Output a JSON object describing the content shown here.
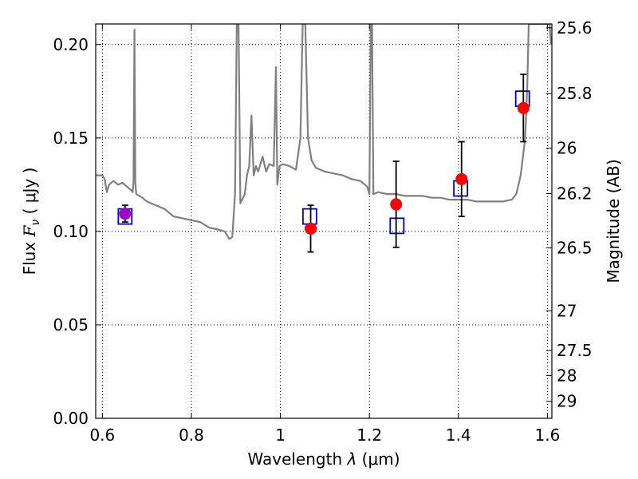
{
  "chart_data": {
    "type": "scatter",
    "xlabel_main": "Wavelength  ",
    "xlabel_lambda": "λ",
    "xlabel_unit": " (μm)",
    "ylabel_prefix": "Flux  ",
    "ylabel_symbol": "F",
    "ylabel_sub": "ν",
    "ylabel_unit": "  ( μJy )",
    "y2label": "Magnitude (AB)",
    "xlim": [
      0.585,
      1.61
    ],
    "ylim": [
      0.0,
      0.211
    ],
    "grid": true,
    "x_ticks": [
      {
        "value": 0.6,
        "label": "0.6"
      },
      {
        "value": 0.8,
        "label": "0.8"
      },
      {
        "value": 1.0,
        "label": "1"
      },
      {
        "value": 1.2,
        "label": "1.2"
      },
      {
        "value": 1.4,
        "label": "1.4"
      },
      {
        "value": 1.6,
        "label": "1.6"
      }
    ],
    "y_ticks": [
      {
        "value": 0.0,
        "label": "0.00"
      },
      {
        "value": 0.05,
        "label": "0.05"
      },
      {
        "value": 0.1,
        "label": "0.10"
      },
      {
        "value": 0.15,
        "label": "0.15"
      },
      {
        "value": 0.2,
        "label": "0.20"
      }
    ],
    "mag_ticks": [
      {
        "mag": 25.6,
        "label": "25.6"
      },
      {
        "mag": 25.8,
        "label": "25.8"
      },
      {
        "mag": 26.0,
        "label": "26"
      },
      {
        "mag": 26.2,
        "label": "26.2"
      },
      {
        "mag": 26.5,
        "label": "26.5"
      },
      {
        "mag": 27.0,
        "label": "27"
      },
      {
        "mag": 27.5,
        "label": "27.5"
      },
      {
        "mag": 28.0,
        "label": "28"
      },
      {
        "mag": 29.0,
        "label": "29"
      }
    ],
    "series": [
      {
        "name": "model spectrum",
        "kind": "line",
        "color": "#808080",
        "points": [
          [
            0.585,
            0.13
          ],
          [
            0.6,
            0.13
          ],
          [
            0.605,
            0.128
          ],
          [
            0.61,
            0.121
          ],
          [
            0.615,
            0.125
          ],
          [
            0.625,
            0.127
          ],
          [
            0.635,
            0.125
          ],
          [
            0.645,
            0.126
          ],
          [
            0.655,
            0.124
          ],
          [
            0.665,
            0.122
          ],
          [
            0.668,
            0.121
          ],
          [
            0.67,
            0.126
          ],
          [
            0.672,
            0.208
          ],
          [
            0.674,
            0.126
          ],
          [
            0.676,
            0.12
          ],
          [
            0.69,
            0.118
          ],
          [
            0.7,
            0.116
          ],
          [
            0.72,
            0.114
          ],
          [
            0.74,
            0.112
          ],
          [
            0.76,
            0.108
          ],
          [
            0.78,
            0.107
          ],
          [
            0.8,
            0.106
          ],
          [
            0.82,
            0.105
          ],
          [
            0.84,
            0.102
          ],
          [
            0.86,
            0.101
          ],
          [
            0.875,
            0.1
          ],
          [
            0.88,
            0.098
          ],
          [
            0.885,
            0.096
          ],
          [
            0.892,
            0.097
          ],
          [
            0.898,
            0.12
          ],
          [
            0.902,
            0.211
          ],
          [
            0.906,
            0.211
          ],
          [
            0.91,
            0.115
          ],
          [
            0.92,
            0.12
          ],
          [
            0.925,
            0.13
          ],
          [
            0.93,
            0.135
          ],
          [
            0.935,
            0.162
          ],
          [
            0.94,
            0.13
          ],
          [
            0.945,
            0.135
          ],
          [
            0.95,
            0.132
          ],
          [
            0.96,
            0.14
          ],
          [
            0.968,
            0.132
          ],
          [
            0.975,
            0.136
          ],
          [
            0.985,
            0.135
          ],
          [
            0.99,
            0.188
          ],
          [
            0.993,
            0.125
          ],
          [
            0.998,
            0.135
          ],
          [
            1.005,
            0.136
          ],
          [
            1.02,
            0.135
          ],
          [
            1.035,
            0.133
          ],
          [
            1.045,
            0.15
          ],
          [
            1.05,
            0.211
          ],
          [
            1.056,
            0.211
          ],
          [
            1.062,
            0.15
          ],
          [
            1.07,
            0.138
          ],
          [
            1.08,
            0.134
          ],
          [
            1.09,
            0.133
          ],
          [
            1.1,
            0.132
          ],
          [
            1.12,
            0.131
          ],
          [
            1.14,
            0.13
          ],
          [
            1.16,
            0.128
          ],
          [
            1.18,
            0.127
          ],
          [
            1.195,
            0.124
          ],
          [
            1.2,
            0.12
          ],
          [
            1.203,
            0.211
          ],
          [
            1.206,
            0.211
          ],
          [
            1.209,
            0.12
          ],
          [
            1.22,
            0.121
          ],
          [
            1.24,
            0.12
          ],
          [
            1.26,
            0.12
          ],
          [
            1.28,
            0.119
          ],
          [
            1.3,
            0.119
          ],
          [
            1.32,
            0.119
          ],
          [
            1.34,
            0.118
          ],
          [
            1.36,
            0.118
          ],
          [
            1.38,
            0.117
          ],
          [
            1.4,
            0.117
          ],
          [
            1.42,
            0.117
          ],
          [
            1.44,
            0.116
          ],
          [
            1.46,
            0.116
          ],
          [
            1.48,
            0.116
          ],
          [
            1.5,
            0.116
          ],
          [
            1.52,
            0.117
          ],
          [
            1.53,
            0.12
          ],
          [
            1.54,
            0.13
          ],
          [
            1.545,
            0.14
          ],
          [
            1.55,
            0.15
          ],
          [
            1.555,
            0.18
          ],
          [
            1.558,
            0.211
          ],
          [
            1.605,
            0.211
          ],
          [
            1.608,
            0.2
          ]
        ]
      },
      {
        "name": "model photometry",
        "kind": "square",
        "color": "#0000cc",
        "points": [
          [
            0.651,
            0.108
          ],
          [
            1.066,
            0.108
          ],
          [
            1.262,
            0.103
          ],
          [
            1.405,
            0.123
          ],
          [
            1.544,
            0.171
          ]
        ]
      },
      {
        "name": "observed photometry",
        "kind": "circle",
        "color": "#ff0000",
        "points": [
          {
            "x": 0.651,
            "y": 0.1095,
            "yerr": 0.0045,
            "color": "#a000c8"
          },
          {
            "x": 1.068,
            "y": 0.1015,
            "yerr": 0.0125
          },
          {
            "x": 1.26,
            "y": 0.1145,
            "yerr": 0.023
          },
          {
            "x": 1.407,
            "y": 0.128,
            "yerr": 0.02
          },
          {
            "x": 1.546,
            "y": 0.166,
            "yerr": 0.018
          }
        ]
      }
    ]
  }
}
